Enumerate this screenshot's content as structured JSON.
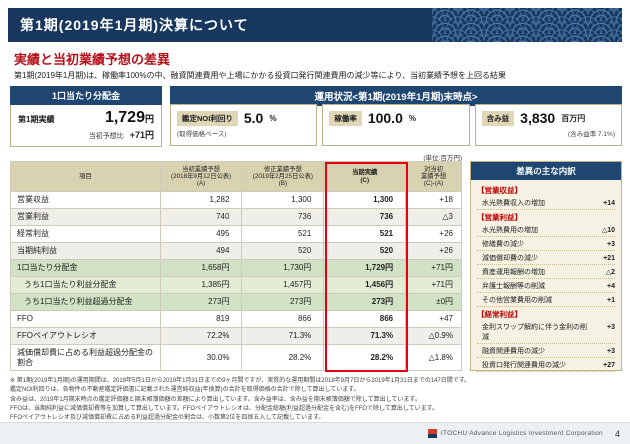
{
  "banner": {
    "title": "第1期(2019年1月期)決算について"
  },
  "section": {
    "heading": "実績と当初業績予想の差異",
    "lead": "第1期(2019年1月期)は、稼働率100%の中、融資関連費用や上場にかかる投資口発行関連費用の減少等により、当初業績予想を上回る結果"
  },
  "dividend_box": {
    "header": "1口当たり分配金",
    "label": "第1期実績",
    "value": "1,729",
    "unit": "円",
    "sub_label": "当初予想比",
    "sub_value": "+71円"
  },
  "status": {
    "header": "運用状況<第1期(2019年1月期)末時点>",
    "items": [
      {
        "label": "鑑定NOI利回り",
        "value": "5.0",
        "unit": "%",
        "note": "(取得価格ベース)"
      },
      {
        "label": "稼働率",
        "value": "100.0",
        "unit": "%",
        "note": ""
      },
      {
        "label": "含み益",
        "value": "3,830",
        "unit": "百万円",
        "note": "(含み益率 7.1%)"
      }
    ]
  },
  "table": {
    "unit_note": "(単位:百万円)",
    "columns": [
      {
        "label": "項目"
      },
      {
        "label": "当初業績予想\n(2018年9月12日公表)\n(A)"
      },
      {
        "label": "修正業績予想\n(2019年2月25日公表)\n(B)"
      },
      {
        "label": "当期実績\n(C)"
      },
      {
        "label": "対当初\n業績予想\n(C)-(A)"
      }
    ],
    "rows": [
      {
        "name": "営業収益",
        "a": "1,282",
        "b": "1,300",
        "c": "1,300",
        "diff": "+18",
        "shade": "white",
        "indent": false
      },
      {
        "name": "営業利益",
        "a": "740",
        "b": "736",
        "c": "736",
        "diff": "△3",
        "shade": "gray",
        "indent": false
      },
      {
        "name": "経常利益",
        "a": "495",
        "b": "521",
        "c": "521",
        "diff": "+26",
        "shade": "white",
        "indent": false
      },
      {
        "name": "当期純利益",
        "a": "494",
        "b": "520",
        "c": "520",
        "diff": "+26",
        "shade": "gray",
        "indent": false
      },
      {
        "name": "1口当たり分配金",
        "a": "1,658円",
        "b": "1,730円",
        "c": "1,729円",
        "diff": "+71円",
        "shade": "green",
        "indent": false
      },
      {
        "name": "うち1口当たり利益分配金",
        "a": "1,385円",
        "b": "1,457円",
        "c": "1,456円",
        "diff": "+71円",
        "shade": "green2",
        "indent": true
      },
      {
        "name": "うち1口当たり利益超過分配金",
        "a": "273円",
        "b": "273円",
        "c": "273円",
        "diff": "±0円",
        "shade": "green",
        "indent": true
      },
      {
        "name": "FFO",
        "a": "819",
        "b": "866",
        "c": "866",
        "diff": "+47",
        "shade": "white",
        "indent": false
      },
      {
        "name": "FFOペイアウトレシオ",
        "a": "72.2%",
        "b": "71.3%",
        "c": "71.3%",
        "diff": "△0.9%",
        "shade": "gray",
        "indent": false
      },
      {
        "name": "減価償却費に占める利益超過分配金の割合",
        "a": "30.0%",
        "b": "28.2%",
        "c": "28.2%",
        "diff": "△1.8%",
        "shade": "white",
        "indent": false
      }
    ]
  },
  "sidebar": {
    "header": "差異の主な内訳",
    "groups": [
      {
        "title": "【営業収益】",
        "items": [
          {
            "label": "水光熱費収入の増加",
            "value": "+14"
          }
        ]
      },
      {
        "title": "【営業利益】",
        "items": [
          {
            "label": "水光熱費用の増加",
            "value": "△10"
          },
          {
            "label": "修繕費の減少",
            "value": "+3"
          },
          {
            "label": "減価償却費の減少",
            "value": "+21"
          },
          {
            "label": "資産運用報酬の増加",
            "value": "△2"
          },
          {
            "label": "弁護士報酬等の削減",
            "value": "+4"
          },
          {
            "label": "その他営業費用の削減",
            "value": "+1"
          }
        ]
      },
      {
        "title": "【経常利益】",
        "items": [
          {
            "label": "金利スワップ解約に伴う金利の削減",
            "value": "+3"
          },
          {
            "label": "融資関連費用の減少",
            "value": "+3"
          },
          {
            "label": "投資口発行関連費用の減少",
            "value": "+27"
          }
        ]
      }
    ]
  },
  "footnotes": {
    "lines": [
      "※ 第1期(2019年1月期)の運用期間は、2018年5月1日から2019年1月31日までの9ヶ月間ですが、実質的な運用期間は2018年9月7日から2019年1月31日までの147日間です。",
      "鑑定NOI利回りは、各物件の不動産鑑定評価書に記載された運営純収益(年換算)の合計を取得価格の合計で除して算出しています。",
      "含み益は、2019年1月期末時点の鑑定評価額と期末帳簿価額の差額により算出しています。含み益率は、含み益を期末帳簿価額で除して算出しています。",
      "FFOは、当期純利益に減価償却費等を加算して算出しています。FFOペイアウトレシオは、分配金総額(利益超過分配金を含む)をFFOで除して算出しています。",
      "FFOペイアウトレシオ及び減価償却費に占める利益超過分配金の割合は、小数第2位を四捨五入して記載しています。"
    ]
  },
  "footer": {
    "logo_text": "ITOCHU Advance Logistics Investment Corporation",
    "page_number": "4"
  },
  "colors": {
    "navy": "#17375e",
    "bar_navy": "#1f4670",
    "accent_red": "#c00000",
    "highlight_red": "#e60012",
    "beige_header": "#d9d2b0",
    "green_row": "#d2e2c4"
  }
}
